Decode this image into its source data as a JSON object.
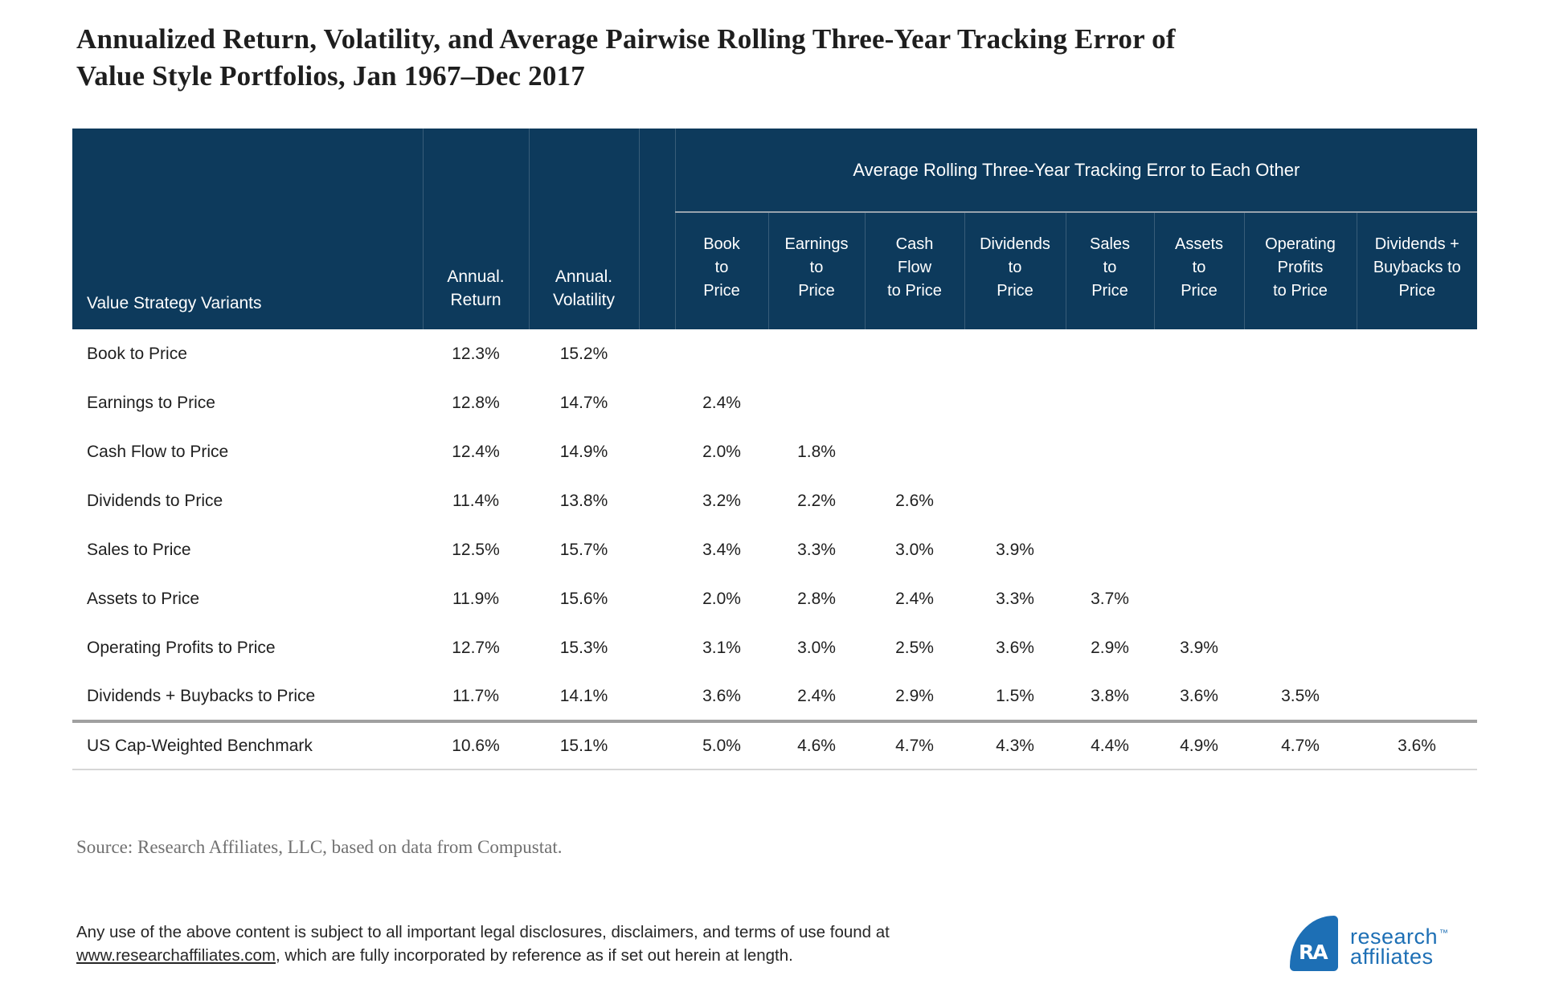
{
  "title": {
    "text": "Annualized Return, Volatility, and Average Pairwise Rolling Three-Year Tracking Error of\nValue Style Portfolios, Jan 1967–Dec 2017"
  },
  "table": {
    "header": {
      "label": "Value Strategy Variants",
      "annual_return": "Annual.\nReturn",
      "annual_volatility": "Annual.\nVolatility",
      "group_title": "Average Rolling Three-Year Tracking Error to Each Other",
      "te_cols": [
        "Book\nto\nPrice",
        "Earnings\nto\nPrice",
        "Cash\nFlow\nto Price",
        "Dividends\nto\nPrice",
        "Sales\nto\nPrice",
        "Assets\nto\nPrice",
        "Operating\nProfits\nto Price",
        "Dividends +\nBuybacks to\nPrice"
      ]
    },
    "rows": [
      {
        "label": "Book to Price",
        "ret": "12.3%",
        "vol": "15.2%",
        "te": [
          "",
          "",
          "",
          "",
          "",
          "",
          "",
          ""
        ]
      },
      {
        "label": "Earnings to Price",
        "ret": "12.8%",
        "vol": "14.7%",
        "te": [
          "2.4%",
          "",
          "",
          "",
          "",
          "",
          "",
          ""
        ]
      },
      {
        "label": "Cash Flow to Price",
        "ret": "12.4%",
        "vol": "14.9%",
        "te": [
          "2.0%",
          "1.8%",
          "",
          "",
          "",
          "",
          "",
          ""
        ]
      },
      {
        "label": "Dividends to Price",
        "ret": "11.4%",
        "vol": "13.8%",
        "te": [
          "3.2%",
          "2.2%",
          "2.6%",
          "",
          "",
          "",
          "",
          ""
        ]
      },
      {
        "label": "Sales to Price",
        "ret": "12.5%",
        "vol": "15.7%",
        "te": [
          "3.4%",
          "3.3%",
          "3.0%",
          "3.9%",
          "",
          "",
          "",
          ""
        ]
      },
      {
        "label": "Assets to Price",
        "ret": "11.9%",
        "vol": "15.6%",
        "te": [
          "2.0%",
          "2.8%",
          "2.4%",
          "3.3%",
          "3.7%",
          "",
          "",
          ""
        ]
      },
      {
        "label": "Operating Profits to Price",
        "ret": "12.7%",
        "vol": "15.3%",
        "te": [
          "3.1%",
          "3.0%",
          "2.5%",
          "3.6%",
          "2.9%",
          "3.9%",
          "",
          ""
        ]
      },
      {
        "label": "Dividends + Buybacks to Price",
        "ret": "11.7%",
        "vol": "14.1%",
        "te": [
          "3.6%",
          "2.4%",
          "2.9%",
          "1.5%",
          "3.8%",
          "3.6%",
          "3.5%",
          ""
        ]
      }
    ],
    "benchmark": {
      "label": "US Cap-Weighted Benchmark",
      "ret": "10.6%",
      "vol": "15.1%",
      "te": [
        "5.0%",
        "4.6%",
        "4.7%",
        "4.3%",
        "4.4%",
        "4.9%",
        "4.7%",
        "3.6%"
      ]
    }
  },
  "source": "Source: Research Affiliates, LLC, based on data from Compustat.",
  "legal": {
    "before": "Any use of the above content is subject to all important legal disclosures, disclaimers, and terms of use found at\n",
    "link": "www.researchaffiliates.com",
    "after": ", which are fully incorporated by reference as if set out herein at length."
  },
  "logo": {
    "monogram": "RA",
    "line1": "research",
    "line2": "affiliates",
    "tm": "™"
  },
  "colors": {
    "header_bg": "#0d3a5c",
    "logo_blue": "#1d6fb5",
    "rule_gray": "#98a3ad",
    "separator_gray": "#a0a0a0"
  },
  "chart_data": {
    "type": "table",
    "title": "Annualized Return, Volatility, and Average Pairwise Rolling Three-Year Tracking Error of Value Style Portfolios, Jan 1967–Dec 2017",
    "group_header": "Average Rolling Three-Year Tracking Error to Each Other",
    "units": "percent",
    "columns": [
      "Value Strategy Variants",
      "Annual. Return",
      "Annual. Volatility",
      "Book to Price",
      "Earnings to Price",
      "Cash Flow to Price",
      "Dividends to Price",
      "Sales to Price",
      "Assets to Price",
      "Operating Profits to Price",
      "Dividends + Buybacks to Price"
    ],
    "rows": [
      [
        "Book to Price",
        12.3,
        15.2,
        null,
        null,
        null,
        null,
        null,
        null,
        null,
        null
      ],
      [
        "Earnings to Price",
        12.8,
        14.7,
        2.4,
        null,
        null,
        null,
        null,
        null,
        null,
        null
      ],
      [
        "Cash Flow to Price",
        12.4,
        14.9,
        2.0,
        1.8,
        null,
        null,
        null,
        null,
        null,
        null
      ],
      [
        "Dividends to Price",
        11.4,
        13.8,
        3.2,
        2.2,
        2.6,
        null,
        null,
        null,
        null,
        null
      ],
      [
        "Sales to Price",
        12.5,
        15.7,
        3.4,
        3.3,
        3.0,
        3.9,
        null,
        null,
        null,
        null
      ],
      [
        "Assets to Price",
        11.9,
        15.6,
        2.0,
        2.8,
        2.4,
        3.3,
        3.7,
        null,
        null,
        null
      ],
      [
        "Operating Profits to Price",
        12.7,
        15.3,
        3.1,
        3.0,
        2.5,
        3.6,
        2.9,
        3.9,
        null,
        null
      ],
      [
        "Dividends + Buybacks to Price",
        11.7,
        14.1,
        3.6,
        2.4,
        2.9,
        1.5,
        3.8,
        3.6,
        3.5,
        null
      ],
      [
        "US Cap-Weighted Benchmark",
        10.6,
        15.1,
        5.0,
        4.6,
        4.7,
        4.3,
        4.4,
        4.9,
        4.7,
        3.6
      ]
    ],
    "source": "Research Affiliates, LLC, based on data from Compustat"
  }
}
